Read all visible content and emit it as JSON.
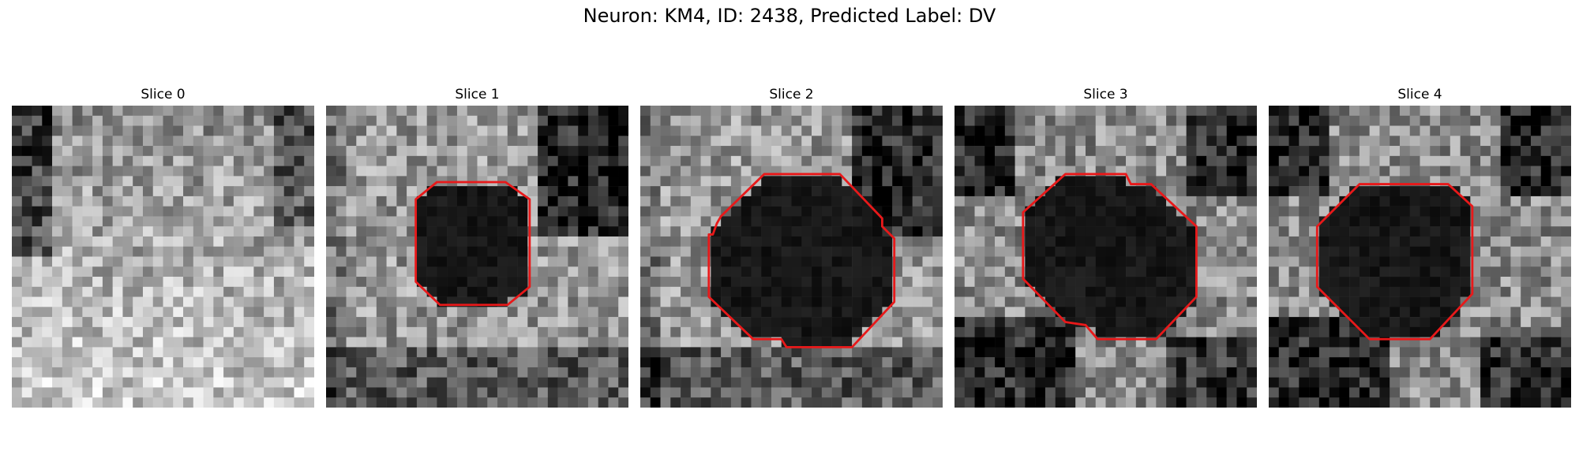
{
  "figure": {
    "title": "Neuron: KM4, ID: 2438, Predicted Label: DV"
  },
  "panels": [
    {
      "title": "Slice 0",
      "has_contour": false,
      "pattern": "bright-bottom",
      "seed": 11
    },
    {
      "title": "Slice 1",
      "has_contour": true,
      "pattern": "dark-top-right",
      "seed": 23
    },
    {
      "title": "Slice 2",
      "has_contour": true,
      "pattern": "dark-top-right",
      "seed": 37
    },
    {
      "title": "Slice 3",
      "has_contour": true,
      "pattern": "dark-corners",
      "seed": 51
    },
    {
      "title": "Slice 4",
      "has_contour": true,
      "pattern": "dark-corners",
      "seed": 67
    }
  ],
  "contour_color": "#e8191a"
}
